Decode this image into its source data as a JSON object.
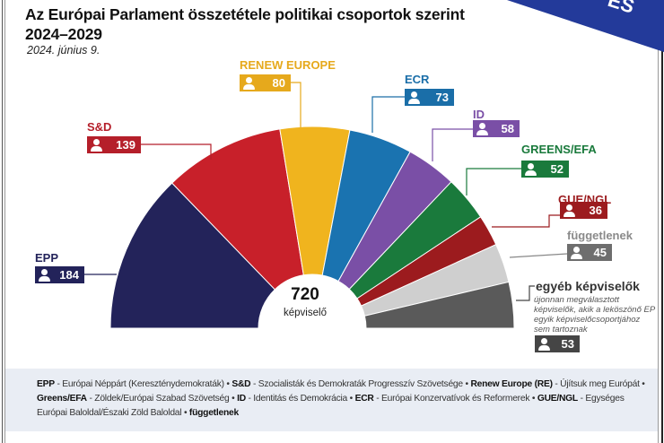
{
  "header": {
    "title_line1": "Az Európai Parlament összetétele politikai csoportok szerint",
    "title_line2": "2024–2029",
    "date": "2024. június 9.",
    "banner_fragment": "ES",
    "banner_color": "#233a9a"
  },
  "center": {
    "total": "720",
    "label": "képviselő"
  },
  "other_description": "újonnan megválasztott képviselők, akik a leköszönő EP egyik képviselőcsoportjához sem tartoznak",
  "chart_data": {
    "type": "pie",
    "subtype": "parliament-semicircle",
    "title": "Az Európai Parlament összetétele politikai csoportok szerint 2024–2029",
    "subtitle": "2024. június 9.",
    "total": 720,
    "total_label": "képviselő",
    "categories": [
      "EPP",
      "S&D",
      "RENEW EUROPE",
      "ECR",
      "ID",
      "GREENS/EFA",
      "GUE/NGL",
      "függetlenek",
      "egyéb képviselők"
    ],
    "values": [
      184,
      139,
      80,
      73,
      58,
      52,
      36,
      45,
      53
    ],
    "colors": [
      "#23235a",
      "#c8202a",
      "#f0b41e",
      "#1a73b0",
      "#7a4fa6",
      "#1a7a3c",
      "#9c1b1e",
      "#cfcfcf",
      "#5a5a5a"
    ],
    "label_colors": [
      "#23235a",
      "#b51f2a",
      "#e6a91c",
      "#1a6ea8",
      "#7a4fa6",
      "#1a7a3c",
      "#9c1b1e",
      "#888888",
      "#444444"
    ]
  },
  "legend": {
    "entries": [
      {
        "abbr": "EPP",
        "desc": "Európai Néppárt (Kereszténydemokraták)"
      },
      {
        "abbr": "S&D",
        "desc": "Szocialisták és Demokraták Progresszív Szövetsége"
      },
      {
        "abbr": "Renew Europe (RE)",
        "desc": "Újítsuk meg Európát"
      },
      {
        "abbr": "Greens/EFA",
        "desc": "Zöldek/Európai Szabad Szövetség"
      },
      {
        "abbr": "ID",
        "desc": "Identitás és Demokrácia"
      },
      {
        "abbr": "ECR",
        "desc": "Európai Konzervatívok és Reformerek"
      },
      {
        "abbr": "GUE/NGL",
        "desc": "Egységes Európai Baloldal/Északi Zöld Baloldal"
      },
      {
        "abbr": "függetlenek",
        "desc": ""
      }
    ]
  }
}
